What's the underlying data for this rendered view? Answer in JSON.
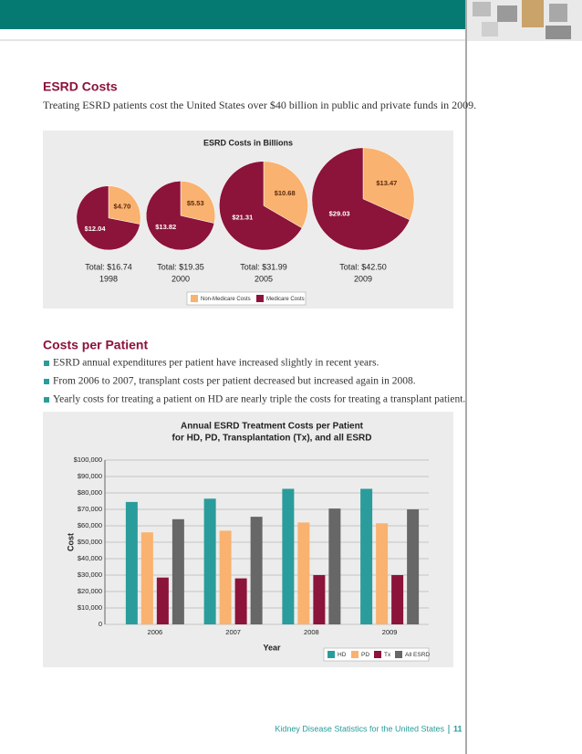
{
  "section1": {
    "title": "ESRD Costs",
    "text": "Treating ESRD patients cost the United States over $40 billion in public and private funds in 2009."
  },
  "section2": {
    "title": "Costs per Patient",
    "bullets": [
      "ESRD annual expenditures per patient have increased slightly in recent years.",
      "From 2006 to 2007, transplant costs per patient decreased but increased again in 2008.",
      "Yearly costs for treating a patient on HD are nearly triple the costs for treating a transplant patient."
    ]
  },
  "chart_data": [
    {
      "type": "pie",
      "title": "ESRD Costs in Billions",
      "categories": [
        "1998",
        "2000",
        "2005",
        "2009"
      ],
      "total_labels": [
        "Total:  $16.74",
        "Total:  $19.35",
        "Total:  $31.99",
        "Total:  $42.50"
      ],
      "series": [
        {
          "name": "Non-Medicare Costs",
          "color": "#f9b26f",
          "values": [
            4.7,
            5.53,
            10.68,
            13.47
          ],
          "value_labels": [
            "$4.70",
            "$5.53",
            "$10.68",
            "$13.47"
          ]
        },
        {
          "name": "Medicare Costs",
          "color": "#8c1339",
          "values": [
            12.04,
            13.82,
            21.31,
            29.03
          ],
          "value_labels": [
            "$12.04",
            "$13.82",
            "$21.31",
            "$29.03"
          ]
        }
      ]
    },
    {
      "type": "bar",
      "title": "Annual ESRD Treatment Costs per Patient",
      "subtitle": "for HD, PD, Transplantation (Tx), and all ESRD",
      "xlabel": "Year",
      "ylabel": "Cost",
      "categories": [
        "2006",
        "2007",
        "2008",
        "2009"
      ],
      "series": [
        {
          "name": "HD",
          "color": "#2a9c9b",
          "values": [
            74500,
            76500,
            82500,
            82500
          ]
        },
        {
          "name": "PD",
          "color": "#f9b26f",
          "values": [
            56000,
            57000,
            62000,
            61500
          ]
        },
        {
          "name": "Tx",
          "color": "#8c1339",
          "values": [
            28500,
            28000,
            30000,
            30000
          ]
        },
        {
          "name": "All ESRD",
          "color": "#676767",
          "values": [
            64000,
            65500,
            70500,
            70000
          ]
        }
      ],
      "ylim": [
        0,
        100000
      ],
      "yticks": [
        0,
        {
          "value": 10000,
          "label": "$10,000"
        },
        {
          "value": 20000,
          "label": "$20,000"
        },
        {
          "value": 30000,
          "label": "$30,000"
        },
        {
          "value": 40000,
          "label": "$40,000"
        },
        {
          "value": 50000,
          "label": "$50,000"
        },
        {
          "value": 60000,
          "label": "$60,000"
        },
        {
          "value": 70000,
          "label": "$70,000"
        },
        {
          "value": 80000,
          "label": "$80,000"
        },
        {
          "value": 90000,
          "label": "$90,000"
        },
        {
          "value": 100000,
          "label": "$100,000"
        }
      ],
      "grid": true,
      "legend": "bottom-right"
    }
  ],
  "footer": {
    "text": "Kidney Disease Statistics for the United States",
    "page": "11"
  }
}
